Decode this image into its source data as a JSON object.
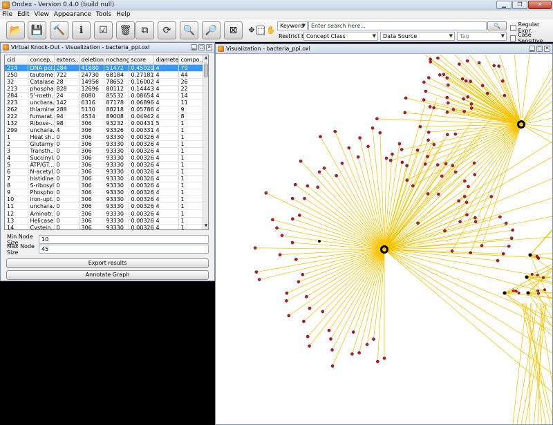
{
  "window": {
    "title": "Ondex - Version 0.4.0 (build null)"
  },
  "menu": [
    "File",
    "Edit",
    "View",
    "Appearance",
    "Tools",
    "Help"
  ],
  "toolbar": {
    "buttons": [
      {
        "name": "open-icon",
        "glyph": "📂"
      },
      {
        "name": "save-icon",
        "glyph": "💾"
      },
      {
        "name": "tools-icon",
        "glyph": "🔨"
      },
      {
        "name": "info-icon",
        "glyph": "ℹ"
      },
      {
        "name": "check-icon",
        "glyph": "☑"
      },
      {
        "name": "trash-icon",
        "glyph": "🗑"
      },
      {
        "name": "copy-icon",
        "glyph": "⧉"
      },
      {
        "name": "refresh-icon",
        "glyph": "⟳"
      },
      {
        "name": "zoom-in-icon",
        "glyph": "🔍"
      },
      {
        "name": "zoom-out-icon",
        "glyph": "🔎"
      },
      {
        "name": "fit-icon",
        "glyph": "⊠"
      }
    ]
  },
  "search": {
    "mode": "Keyword",
    "placeholder": "Enter search here...",
    "restrict_label": "Restrict by:",
    "concept_class": "Concept Class",
    "data_source": "Data Source",
    "tag": "Tag",
    "regular_expr": "Regular Expr.",
    "case_sensitive": "Case Sensitive"
  },
  "knockout": {
    "title": "Virtual Knock-Out - Visualization - bacteria_ppi.oxl",
    "columns": [
      "cid",
      "concep...",
      "extens...",
      "deletion",
      "nochange",
      "score",
      "diameter",
      "compo..."
    ],
    "rows": [
      [
        "214",
        "DNA pol...",
        "284",
        "41880",
        "51472",
        "0.45029...",
        "4",
        "79"
      ],
      [
        "250",
        "tautome...",
        "722",
        "24730",
        "68184",
        "0.27181...",
        "4",
        "44"
      ],
      [
        "32",
        "Catalase",
        "28",
        "14956",
        "78652",
        "0.16002...",
        "4",
        "26"
      ],
      [
        "213",
        "phospha...",
        "828",
        "12696",
        "80112",
        "0.14443...",
        "4",
        "22"
      ],
      [
        "284",
        "5'-meth...",
        "24",
        "8080",
        "85532",
        "0.08654...",
        "4",
        "14"
      ],
      [
        "223",
        "unchara...",
        "142",
        "6316",
        "87178",
        "0.06896...",
        "4",
        "11"
      ],
      [
        "262",
        "thiamine...",
        "288",
        "5130",
        "88218",
        "0.05786...",
        "4",
        "9"
      ],
      [
        "222",
        "fumarat...",
        "94",
        "4534",
        "89008",
        "0.04942...",
        "4",
        "8"
      ],
      [
        "132",
        "Ribose-...",
        "98",
        "306",
        "93232",
        "0.00431...",
        "5",
        "1"
      ],
      [
        "299",
        "unchara...",
        "4",
        "306",
        "93326",
        "0.00331...",
        "4",
        "1"
      ],
      [
        "1",
        "Heat sh...",
        "0",
        "306",
        "93330",
        "0.00326...",
        "4",
        "1"
      ],
      [
        "2",
        "Glutamyl...",
        "0",
        "306",
        "93330",
        "0.00326...",
        "4",
        "1"
      ],
      [
        "3",
        "Transth...",
        "0",
        "306",
        "93330",
        "0.00326...",
        "4",
        "1"
      ],
      [
        "4",
        "Succinyl...",
        "0",
        "306",
        "93330",
        "0.00326...",
        "4",
        "1"
      ],
      [
        "5",
        "ATP/GT...",
        "0",
        "306",
        "93330",
        "0.00326...",
        "4",
        "1"
      ],
      [
        "6",
        "N-acetyl...",
        "0",
        "306",
        "93330",
        "0.00326...",
        "4",
        "1"
      ],
      [
        "7",
        "histidine...",
        "0",
        "306",
        "93330",
        "0.00326...",
        "4",
        "1"
      ],
      [
        "8",
        "S-ribosyl...",
        "0",
        "306",
        "93330",
        "0.00326...",
        "4",
        "1"
      ],
      [
        "9",
        "Phospho...",
        "0",
        "306",
        "93330",
        "0.00326...",
        "4",
        "1"
      ],
      [
        "10",
        "iron-upt...",
        "0",
        "306",
        "93330",
        "0.00326...",
        "4",
        "1"
      ],
      [
        "11",
        "unchara...",
        "0",
        "306",
        "93330",
        "0.00326...",
        "4",
        "1"
      ],
      [
        "12",
        "Aminotr...",
        "0",
        "306",
        "93330",
        "0.00326...",
        "4",
        "1"
      ],
      [
        "13",
        "Helicase...",
        "0",
        "306",
        "93330",
        "0.00326...",
        "4",
        "1"
      ],
      [
        "14",
        "Cystein...",
        "0",
        "306",
        "93330",
        "0.00326...",
        "4",
        "1"
      ]
    ],
    "selected_row": 0,
    "min_node_size_label": "Min Node Size",
    "min_node_size": "10",
    "max_node_size_label": "Max Node Size",
    "max_node_size": "45",
    "export_label": "Export results",
    "annotate_label": "Annotate Graph"
  },
  "visualization": {
    "title": "Visualization - bacteria_ppi.oxl",
    "colors": {
      "edge": "#f5c400",
      "node": "#c2152b",
      "hub": "#000000"
    }
  }
}
